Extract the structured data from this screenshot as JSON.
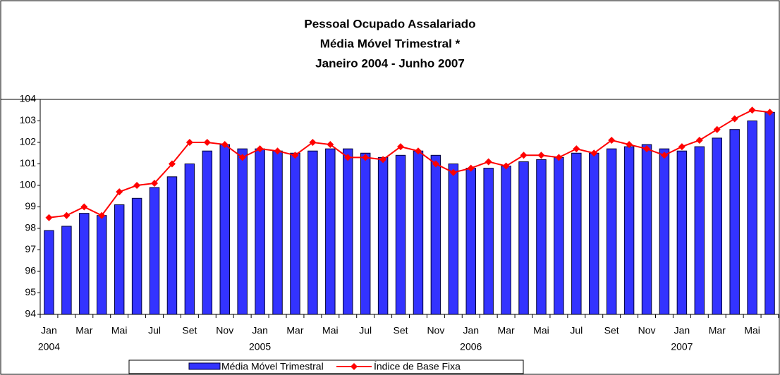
{
  "chart_data": {
    "type": "bar_line",
    "title": [
      "Pessoal Ocupado Assalariado",
      "Média Móvel Trimestral *",
      "Janeiro 2004 - Junho 2007"
    ],
    "categories": [
      "Jan",
      null,
      "Mar",
      null,
      "Mai",
      null,
      "Jul",
      null,
      "Set",
      null,
      "Nov",
      null,
      "Jan",
      null,
      "Mar",
      null,
      "Mai",
      null,
      "Jul",
      null,
      "Set",
      null,
      "Nov",
      null,
      "Jan",
      null,
      "Mar",
      null,
      "Mai",
      null,
      "Jul",
      null,
      "Set",
      null,
      "Nov",
      null,
      "Jan",
      null,
      "Mar",
      null,
      "Mai",
      null
    ],
    "category_years": [
      "2004",
      null,
      null,
      null,
      null,
      null,
      null,
      null,
      null,
      null,
      null,
      null,
      "2005",
      null,
      null,
      null,
      null,
      null,
      null,
      null,
      null,
      null,
      null,
      null,
      "2006",
      null,
      null,
      null,
      null,
      null,
      null,
      null,
      null,
      null,
      null,
      null,
      "2007",
      null,
      null,
      null,
      null,
      null
    ],
    "series": [
      {
        "name": "Média Móvel Trimestral",
        "type": "bar",
        "color": "#3333ff",
        "values": [
          97.9,
          98.1,
          98.7,
          98.6,
          99.1,
          99.4,
          99.9,
          100.4,
          101.0,
          101.6,
          101.9,
          101.7,
          101.7,
          101.6,
          101.5,
          101.6,
          101.7,
          101.7,
          101.5,
          101.3,
          101.4,
          101.6,
          101.4,
          101.0,
          100.8,
          100.8,
          100.9,
          101.1,
          101.2,
          101.3,
          101.5,
          101.5,
          101.7,
          101.8,
          101.9,
          101.7,
          101.6,
          101.8,
          102.2,
          102.6,
          103.0,
          103.4
        ]
      },
      {
        "name": "Índice de Base Fixa",
        "type": "line",
        "color": "#ff0000",
        "values": [
          98.5,
          98.6,
          99.0,
          98.6,
          99.7,
          100.0,
          100.1,
          101.0,
          102.0,
          102.0,
          101.9,
          101.3,
          101.7,
          101.6,
          101.4,
          102.0,
          101.9,
          101.3,
          101.3,
          101.2,
          101.8,
          101.6,
          101.0,
          100.6,
          100.8,
          101.1,
          100.9,
          101.4,
          101.4,
          101.3,
          101.7,
          101.5,
          102.1,
          101.9,
          101.7,
          101.4,
          101.8,
          102.1,
          102.6,
          103.1,
          103.5,
          103.4
        ]
      }
    ],
    "ylim": [
      94,
      104
    ],
    "yticks": [
      94,
      95,
      96,
      97,
      98,
      99,
      100,
      101,
      102,
      103,
      104
    ],
    "grid": false
  }
}
